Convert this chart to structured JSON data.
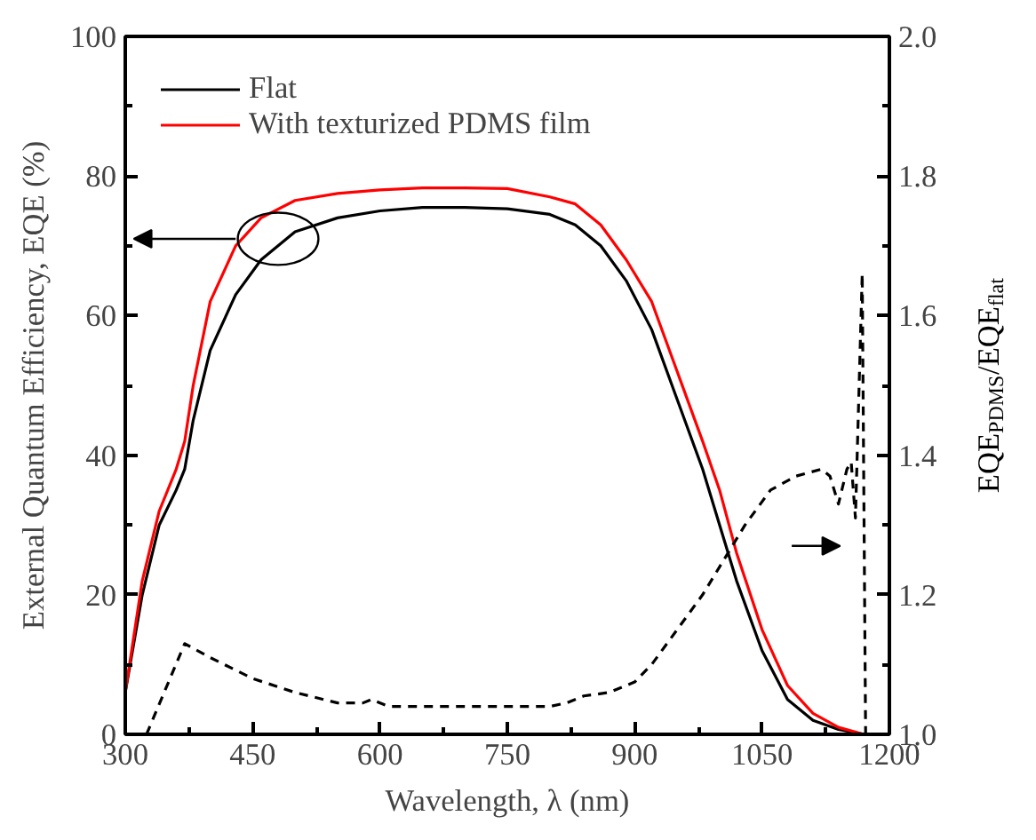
{
  "chart_data": {
    "type": "line",
    "xlabel": "Wavelength, λ (nm)",
    "ylabel": "External Quantum Efficiency, EQE (%)",
    "y2label": "EQE$_{PDMS}$/EQE$_{flat}$",
    "x": [
      300,
      320,
      340,
      360,
      370,
      380,
      400,
      430,
      460,
      500,
      550,
      600,
      650,
      700,
      750,
      800,
      830,
      860,
      890,
      920,
      950,
      980,
      1000,
      1020,
      1050,
      1080,
      1110,
      1140,
      1170
    ],
    "series": [
      {
        "name": "Flat",
        "color": "#000000",
        "values": [
          6,
          20,
          30,
          35,
          38,
          45,
          55,
          63,
          68,
          72,
          74,
          75,
          75.5,
          75.5,
          75.3,
          74.5,
          73,
          70,
          65,
          58,
          48,
          38,
          30,
          22,
          12,
          5,
          2,
          0.7,
          0
        ]
      },
      {
        "name": "With texturized PDMS film",
        "color": "#ff0000",
        "values": [
          6,
          22,
          32,
          38,
          42,
          50,
          62,
          70,
          74,
          76.5,
          77.5,
          78,
          78.3,
          78.3,
          78.2,
          77,
          76,
          73,
          68,
          62,
          52,
          42,
          35,
          26,
          15,
          7,
          3,
          1,
          0
        ]
      },
      {
        "axis": "y2",
        "color": "#000000",
        "line_style": "dashed",
        "x": [
          325,
          370,
          400,
          450,
          500,
          550,
          580,
          590,
          610,
          700,
          800,
          820,
          840,
          870,
          900,
          920,
          950,
          980,
          1000,
          1030,
          1060,
          1090,
          1120,
          1130,
          1140,
          1150,
          1155,
          1160,
          1168,
          1172
        ],
        "values": [
          1.0,
          1.13,
          1.11,
          1.08,
          1.06,
          1.045,
          1.045,
          1.05,
          1.04,
          1.04,
          1.04,
          1.045,
          1.055,
          1.06,
          1.075,
          1.1,
          1.15,
          1.2,
          1.24,
          1.3,
          1.35,
          1.37,
          1.38,
          1.37,
          1.33,
          1.38,
          1.39,
          1.31,
          1.66,
          1.0
        ]
      }
    ],
    "xlim": [
      300,
      1200
    ],
    "xticks": [
      300,
      450,
      600,
      750,
      900,
      1050,
      1200
    ],
    "ylim": [
      0,
      100
    ],
    "yticks": [
      0,
      20,
      40,
      60,
      80,
      100
    ],
    "y2lim": [
      1.0,
      2.0
    ],
    "y2ticks": [
      {
        "value": 1.0,
        "label": "1.0"
      },
      {
        "value": 1.2,
        "label": "1.2"
      },
      {
        "value": 1.4,
        "label": "1.4"
      },
      {
        "value": 1.6,
        "label": "1.6"
      },
      {
        "value": 1.8,
        "label": "1.8"
      },
      {
        "value": 2.0,
        "label": "2.0"
      }
    ],
    "legend": "top left",
    "grid": false,
    "line_style": "solid"
  }
}
